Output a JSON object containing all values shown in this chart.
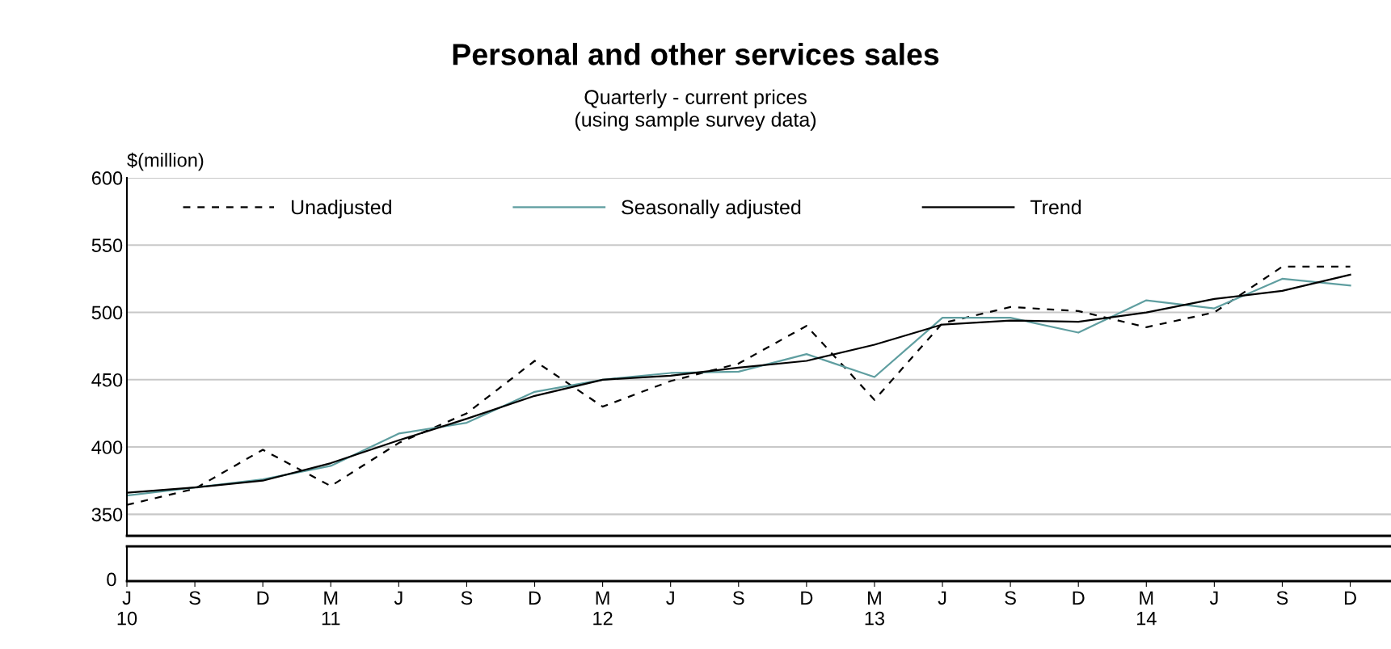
{
  "chart_data": {
    "type": "line",
    "title": "Personal and other services sales",
    "subtitle": "Quarterly - current prices\n(using sample survey data)",
    "ylabel": "$(million)",
    "categories": [
      "J\n10",
      "S",
      "D",
      "M\n11",
      "J",
      "S",
      "D",
      "M\n12",
      "J",
      "S",
      "D",
      "M\n13",
      "J",
      "S",
      "D",
      "M\n14",
      "J",
      "S",
      "D"
    ],
    "series": [
      {
        "name": "Unadjusted",
        "color": "#000000",
        "line_style": "dashed",
        "values": [
          357,
          369,
          398,
          371,
          403,
          425,
          464,
          430,
          449,
          462,
          490,
          435,
          492,
          504,
          501,
          489,
          500,
          534,
          534
        ]
      },
      {
        "name": "Seasonally adjusted",
        "color": "#5f9ea0",
        "line_style": "solid",
        "values": [
          364,
          370,
          376,
          386,
          410,
          418,
          441,
          450,
          455,
          456,
          469,
          452,
          496,
          496,
          485,
          509,
          503,
          525,
          520
        ]
      },
      {
        "name": "Trend",
        "color": "#000000",
        "line_style": "solid",
        "values": [
          366,
          370,
          375,
          388,
          405,
          421,
          438,
          450,
          453,
          459,
          464,
          476,
          491,
          494,
          493,
          500,
          510,
          516,
          528
        ]
      }
    ],
    "ylim": [
      334,
      600
    ],
    "yticks": [
      350,
      400,
      450,
      500,
      550,
      600
    ],
    "grid": "y",
    "legend": "top",
    "marker": "none",
    "annotations": [
      "0"
    ]
  }
}
